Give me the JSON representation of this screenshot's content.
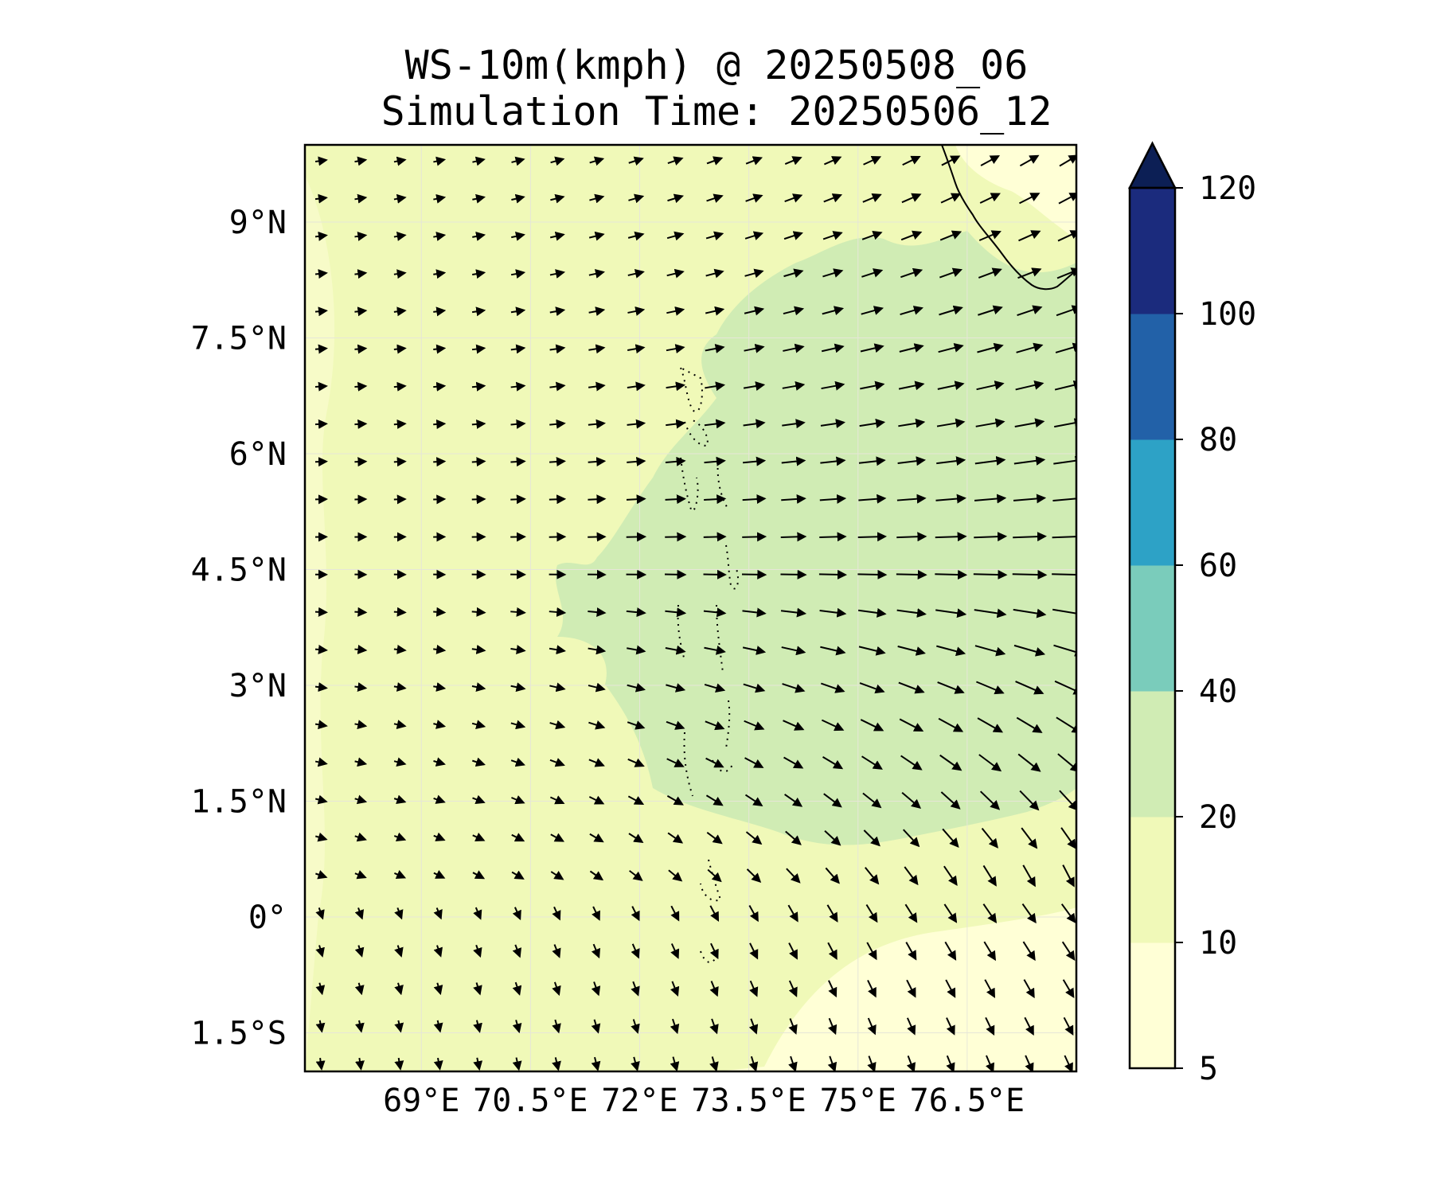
{
  "title": "WS-10m(kmph) @ 20250508_06",
  "subtitle": "Simulation Time: 20250506_12",
  "map": {
    "lon_range": [
      67.4,
      78.0
    ],
    "lat_range": [
      -2.0,
      10.0
    ],
    "lon_ticks": [
      {
        "value": 69.0,
        "label": "69°E"
      },
      {
        "value": 70.5,
        "label": "70.5°E"
      },
      {
        "value": 72.0,
        "label": "72°E"
      },
      {
        "value": 73.5,
        "label": "73.5°E"
      },
      {
        "value": 75.0,
        "label": "75°E"
      },
      {
        "value": 76.5,
        "label": "76.5°E"
      }
    ],
    "lat_ticks": [
      {
        "value": 9.0,
        "label": "9°N"
      },
      {
        "value": 7.5,
        "label": "7.5°N"
      },
      {
        "value": 6.0,
        "label": "6°N"
      },
      {
        "value": 4.5,
        "label": "4.5°N"
      },
      {
        "value": 3.0,
        "label": "3°N"
      },
      {
        "value": 1.5,
        "label": "1.5°N"
      },
      {
        "value": 0.0,
        "label": "0°"
      },
      {
        "value": -1.5,
        "label": "1.5°S"
      }
    ],
    "gridlines": true,
    "field": "wind speed at 10 m (kmph) with wind vectors",
    "features": [
      "India southern coastline (top-right)",
      "Maldives atolls (dotted)"
    ]
  },
  "colorbar": {
    "ticks": [
      5,
      10,
      20,
      40,
      60,
      80,
      100,
      120
    ],
    "colors": [
      "#ffffd6",
      "#f0f9b8",
      "#d0ecb4",
      "#7accbb",
      "#2da2c6",
      "#2261a8",
      "#1b2b7d"
    ],
    "extend_color": "#0c1f55",
    "extend": "max"
  }
}
